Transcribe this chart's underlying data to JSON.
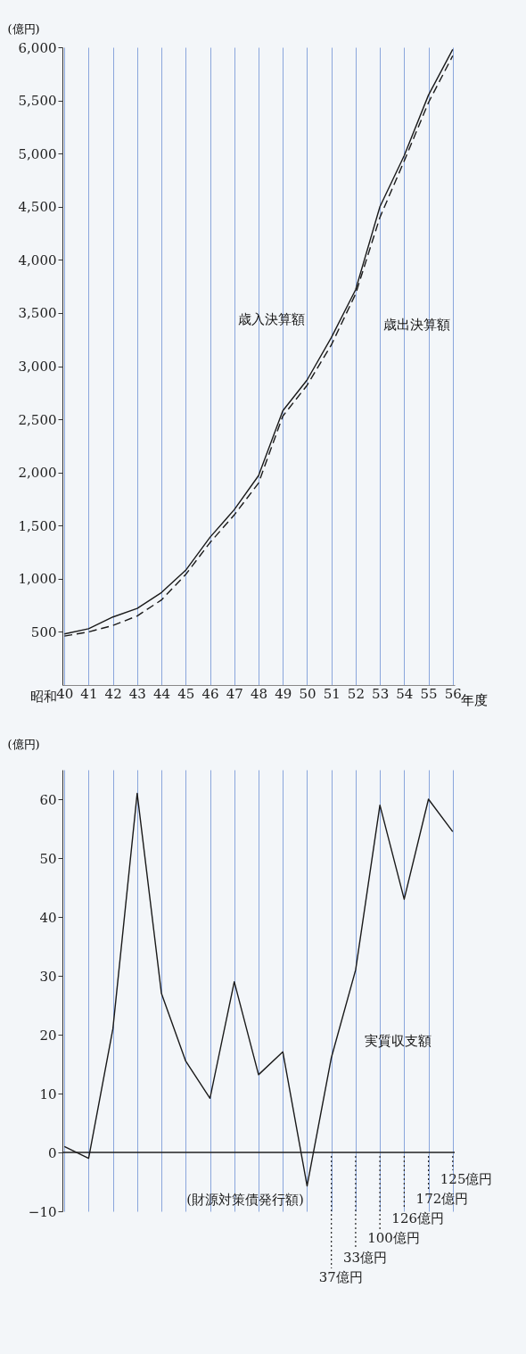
{
  "chart_data": [
    {
      "type": "line",
      "ylabel": "(億円)",
      "xlabel": "年度",
      "categories": [
        "40",
        "41",
        "42",
        "43",
        "44",
        "45",
        "46",
        "47",
        "48",
        "49",
        "50",
        "51",
        "52",
        "53",
        "54",
        "55",
        "56"
      ],
      "ylim": [
        0,
        6000
      ],
      "yticks": [
        500,
        {
          "value": 1000,
          "label": "1,000"
        },
        {
          "value": 1500,
          "label": "1,500"
        },
        {
          "value": 2000,
          "label": "2,000"
        },
        {
          "value": 2500,
          "label": "2,500"
        },
        {
          "value": 3000,
          "label": "3,000"
        },
        {
          "value": 3500,
          "label": "3,500"
        },
        {
          "value": 4000,
          "label": "4,000"
        },
        {
          "value": 4500,
          "label": "4,500"
        },
        {
          "value": 5000,
          "label": "5,000"
        },
        {
          "value": 5500,
          "label": "5,500"
        },
        {
          "value": 6000,
          "label": "6,000"
        }
      ],
      "grid": "x",
      "series": [
        {
          "name": "歳入決算額",
          "color": "#1a1a1a",
          "line_style": "solid",
          "values": [
            480,
            530,
            640,
            720,
            870,
            1080,
            1390,
            1650,
            1970,
            2580,
            2870,
            3270,
            3720,
            4500,
            4980,
            5550,
            5980
          ]
        },
        {
          "name": "歳出決算額",
          "color": "#1a1a1a",
          "line_style": "dashed",
          "values": [
            460,
            500,
            560,
            650,
            800,
            1040,
            1340,
            1600,
            1900,
            2530,
            2820,
            3200,
            3680,
            4400,
            4930,
            5480,
            5920
          ]
        }
      ],
      "annotations": [
        "昭和"
      ]
    },
    {
      "type": "line",
      "ylabel": "(億円)",
      "categories": [
        "40",
        "41",
        "42",
        "43",
        "44",
        "45",
        "46",
        "47",
        "48",
        "49",
        "50",
        "51",
        "52",
        "53",
        "54",
        "55",
        "56"
      ],
      "ylim": [
        -10,
        65
      ],
      "yticks": [
        {
          "value": -10,
          "label": "−10"
        },
        0,
        10,
        20,
        30,
        40,
        50,
        60
      ],
      "grid": "x",
      "tick_labels": "y",
      "series": [
        {
          "name": "実質収支額",
          "color": "#1a1a1a",
          "line_style": "solid",
          "values": [
            1,
            -1,
            21,
            61,
            27,
            15.5,
            9.2,
            29,
            13.2,
            17.1,
            -5.7,
            16.1,
            31,
            59,
            43,
            60,
            54.5
          ]
        }
      ],
      "ref_lines": [
        {
          "axis": "y",
          "value": 0
        }
      ],
      "annotations": [
        "(財源対策債発行額)",
        {
          "text": "37億円",
          "x": "51",
          "y": 0
        },
        {
          "text": "33億円",
          "x": "52",
          "y": 0
        },
        {
          "text": "100億円",
          "x": "53",
          "y": 0
        },
        {
          "text": "126億円",
          "x": "54",
          "y": 0
        },
        {
          "text": "172億円",
          "x": "55",
          "y": 0
        },
        {
          "text": "125億円",
          "x": "56",
          "y": 0
        }
      ]
    }
  ]
}
